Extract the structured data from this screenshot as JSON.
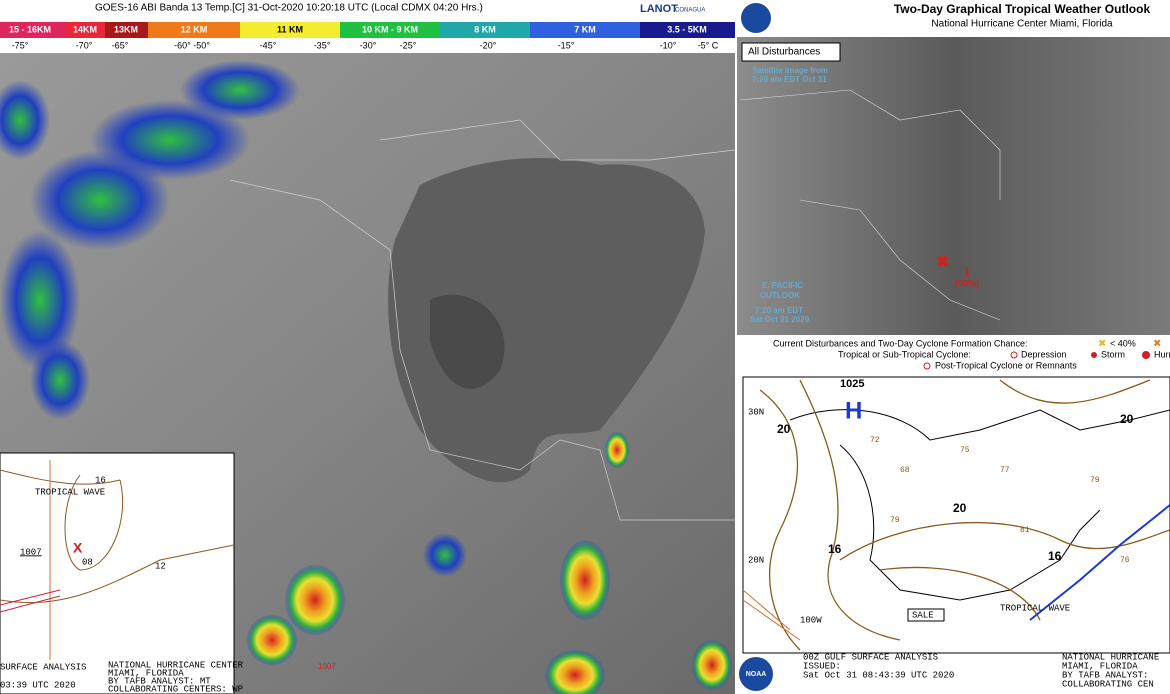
{
  "satellite_panel": {
    "title": "GOES-16 ABI Banda 13 Temp.[C] 31-Oct-2020 10:20:18 UTC (Local CDMX  04:20 Hrs.)",
    "logos": [
      "LANOT",
      "CONAGUA"
    ],
    "scale_heights": [
      "15 - 16KM",
      "14KM",
      "13KM",
      "12 KM",
      "11 KM",
      "10 KM - 9 KM",
      "8 KM",
      "7 KM",
      "3.5 - 5KM"
    ],
    "scale_temps": [
      "-75°",
      "-70°",
      "-65°",
      "-60° -50°",
      "-45°",
      "-35°",
      "-30°",
      "-25°",
      "-20°",
      "-15°",
      "-10°",
      "-5° C"
    ],
    "map_label": "1007"
  },
  "inset": {
    "pressures": [
      "16",
      "1007",
      "08",
      "12"
    ],
    "feature": "TROPICAL WAVE",
    "footer_left": [
      "SURFACE ANALYSIS",
      "03:39 UTC 2020"
    ],
    "footer_right": [
      "NATIONAL HURRICANE CENTER",
      "MIAMI, FLORIDA",
      "BY TAFB ANALYST: MT",
      "COLLABORATING CENTERS: WP"
    ]
  },
  "outlook": {
    "title": "Two-Day Graphical Tropical Weather Outlook",
    "subtitle": "National Hurricane Center  Miami, Florida",
    "button": "All Disturbances",
    "image_note": [
      "Satellite Image from",
      "7:20 am EDT Oct 31"
    ],
    "basin": [
      "E. PACIFIC",
      "OUTLOOK"
    ],
    "timestamp": [
      "7:20 am EDT",
      "Sat Oct 31 2020"
    ],
    "disturbance": {
      "number": "1",
      "chance": "(90%)"
    },
    "legend": {
      "heading": "Current Disturbances and Two-Day Cyclone Formation Chance:",
      "chances": [
        "< 40%"
      ],
      "cyclone_label": "Tropical or Sub-Tropical Cyclone:",
      "cyclone_types": [
        "Depression",
        "Storm",
        "Hurricane"
      ],
      "post_tropical": "Post-Tropical Cyclone or Remnants"
    }
  },
  "surface_analysis": {
    "high_pressure": "1025",
    "high_symbol": "H",
    "isobars": [
      "20",
      "20",
      "16",
      "16",
      "20"
    ],
    "lat_labels": [
      "30N",
      "20N"
    ],
    "lon_label": "100W",
    "tags": [
      "SALE",
      "TROPICAL WAVE"
    ],
    "footer": {
      "title": "00Z GULF SURFACE ANALYSIS",
      "issued": "ISSUED:",
      "time": "Sat Oct 31 08:43:39 UTC 2020",
      "center": "NATIONAL HURRICANE",
      "city": "MIAMI, FLORIDA",
      "analyst": "BY TAFB ANALYST:",
      "collab": "COLLABORATING CEN"
    },
    "logo": "NOAA"
  }
}
